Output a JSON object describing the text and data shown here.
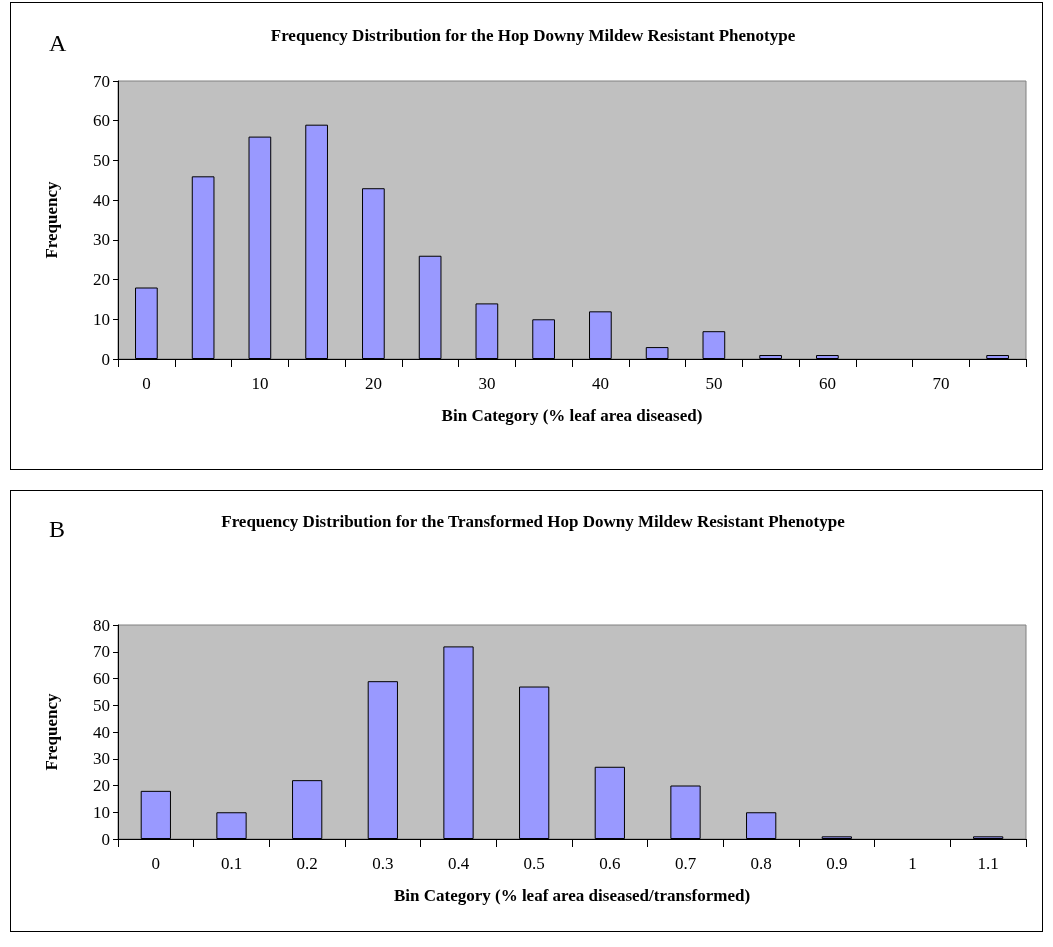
{
  "chart_data": [
    {
      "type": "bar",
      "title": "Frequency Distribution for the Hop Downy Mildew Resistant Phenotype",
      "xlabel": "Bin Category (% leaf area diseased)",
      "ylabel": "Frequency",
      "annotations": [
        "A"
      ],
      "categories": [
        "0",
        null,
        "10",
        null,
        "20",
        null,
        "30",
        null,
        "40",
        null,
        "50",
        null,
        "60",
        null,
        "70",
        null
      ],
      "values": [
        18,
        46,
        56,
        59,
        43,
        26,
        14,
        10,
        12,
        3,
        7,
        1,
        1,
        0,
        0,
        1
      ],
      "color": "#9999ff",
      "ylim": [
        0,
        70
      ],
      "yticks": [
        0,
        10,
        20,
        30,
        40,
        50,
        60,
        70
      ],
      "grid": false
    },
    {
      "type": "bar",
      "title": "Frequency Distribution for the Transformed Hop Downy Mildew Resistant Phenotype",
      "xlabel": "Bin Category (% leaf area diseased/transformed)",
      "ylabel": "Frequency",
      "annotations": [
        "B"
      ],
      "categories": [
        "0",
        "0.1",
        "0.2",
        "0.3",
        "0.4",
        "0.5",
        "0.6",
        "0.7",
        "0.8",
        "0.9",
        "1",
        "1.1"
      ],
      "values": [
        18,
        10,
        22,
        59,
        72,
        57,
        27,
        20,
        10,
        1,
        0,
        1
      ],
      "color": "#9999ff",
      "ylim": [
        0,
        80
      ],
      "yticks": [
        0,
        10,
        20,
        30,
        40,
        50,
        60,
        70,
        80
      ],
      "grid": false
    }
  ]
}
